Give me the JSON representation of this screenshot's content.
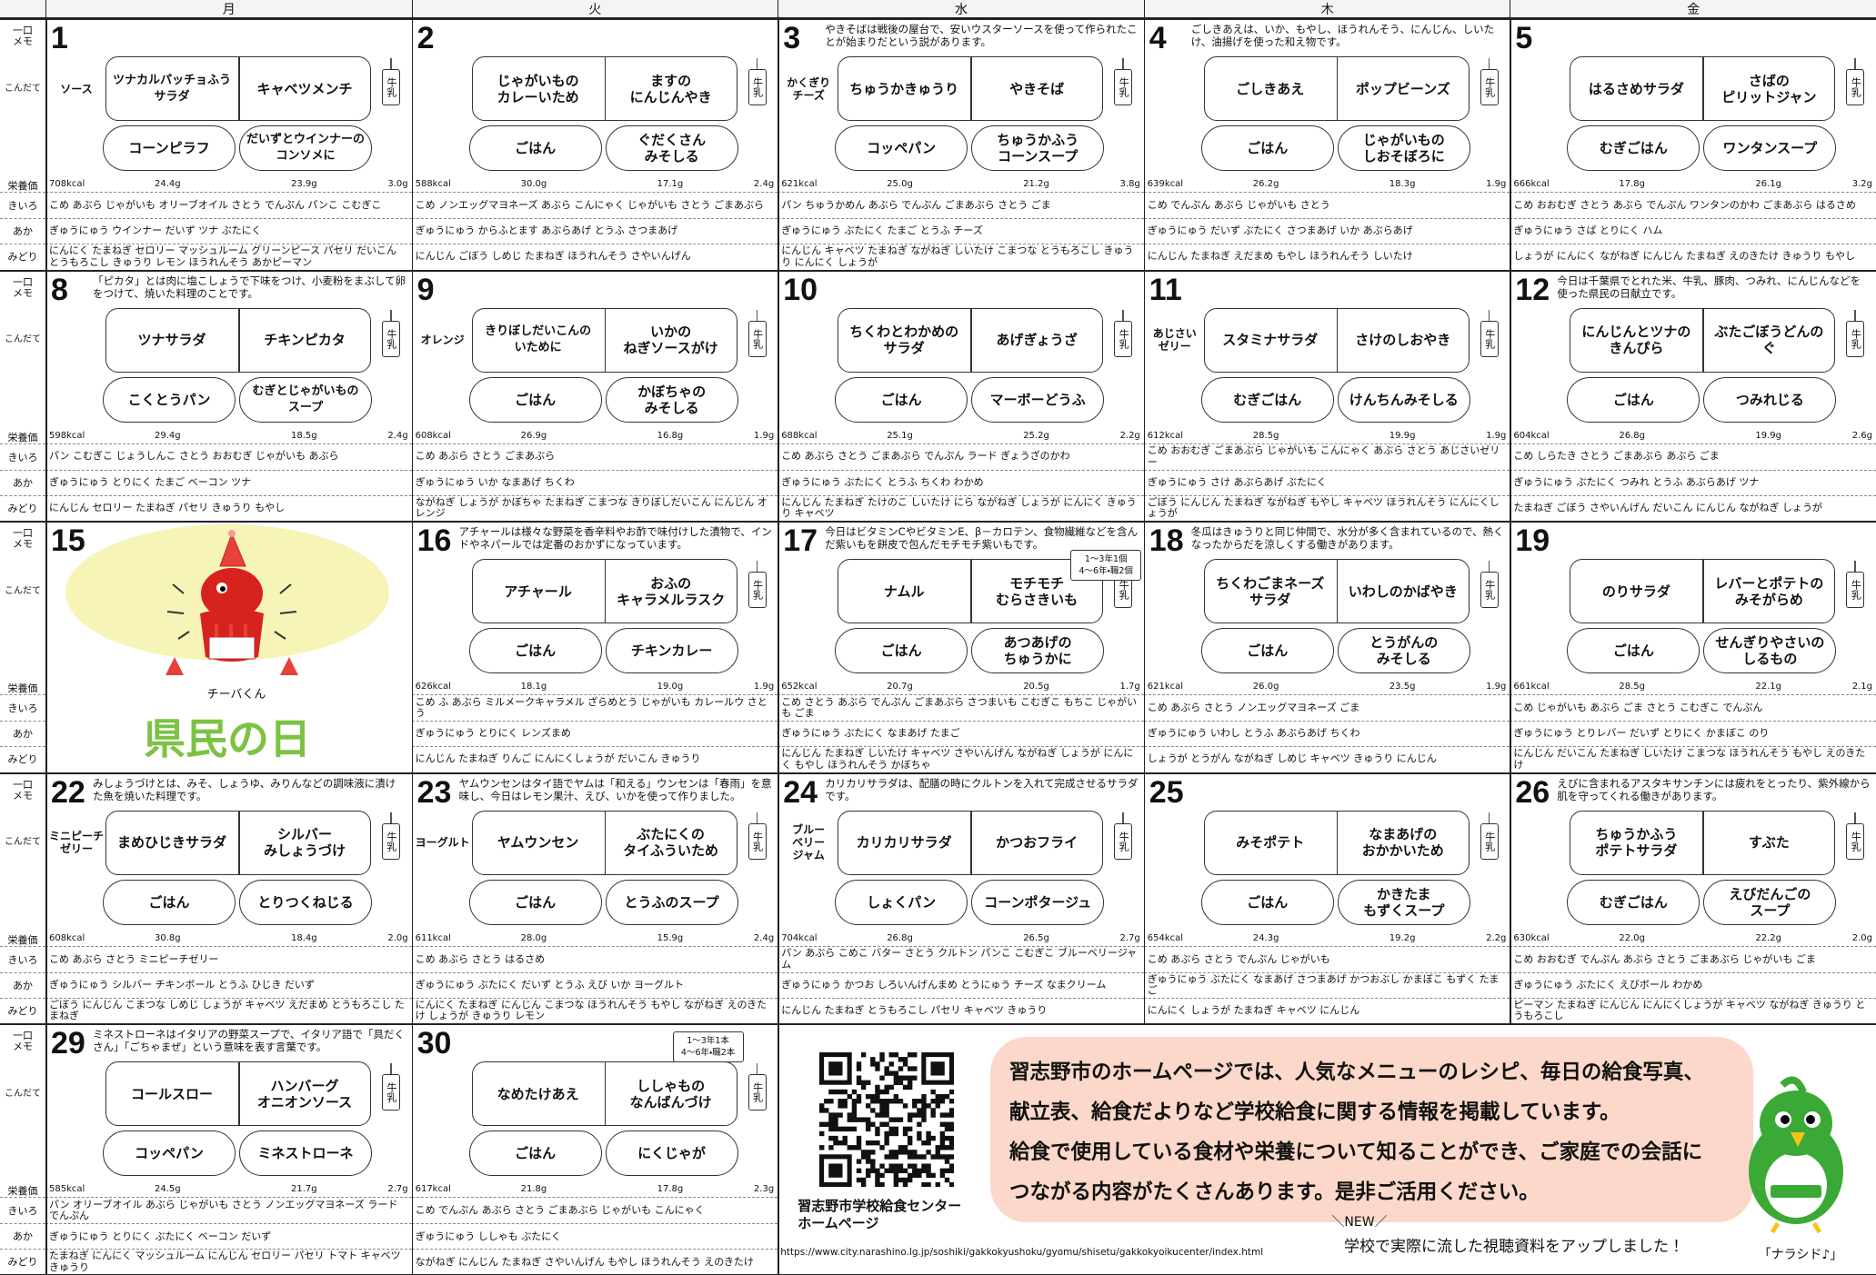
{
  "header": {
    "days": [
      "月",
      "火",
      "水",
      "木",
      "金"
    ]
  },
  "row_labels": {
    "memo": "一口\nメモ",
    "menu": "こんだて",
    "nutrition": "栄養価",
    "yellow": "きいろ",
    "red": "あか",
    "green": "みどり"
  },
  "milk": "牛乳",
  "weeks": [
    {
      "days": [
        {
          "date": "1",
          "side": "ソース",
          "main": [
            "ツナカルパッチョふう\nサラダ",
            "キャベツメンチ"
          ],
          "sub": [
            "コーンピラフ",
            "だいずとウインナーの\nコンソメに"
          ],
          "nutrition": {
            "kcal": "708kcal",
            "protein": "24.4g",
            "fat": "23.9g",
            "salt": "3.0g"
          },
          "yellow": "こめ あぶら じゃがいも オリーブオイル さとう でんぷん パンこ こむぎこ",
          "red": "ぎゅうにゅう ウインナー だいず ツナ ぶたにく",
          "green": "にんにく たまねぎ セロリー マッシュルーム グリーンピース パセリ だいこん とうもろこし きゅうり レモン ほうれんそう あかピーマン"
        },
        {
          "date": "2",
          "main": [
            "じゃがいもの\nカレーいため",
            "ますの\nにんじんやき"
          ],
          "sub": [
            "ごはん",
            "ぐだくさん\nみそしる"
          ],
          "nutrition": {
            "kcal": "588kcal",
            "protein": "30.0g",
            "fat": "17.1g",
            "salt": "2.4g"
          },
          "yellow": "こめ ノンエッグマヨネーズ あぶら こんにゃく じゃがいも さとう ごまあぶら",
          "red": "ぎゅうにゅう からふとます あぶらあげ とうふ さつまあげ",
          "green": "にんじん ごぼう しめじ たまねぎ ほうれんそう さやいんげん"
        },
        {
          "date": "3",
          "memo": "やきそばは戦後の屋台で、安いウスターソースを使って作られたことが始まりだという説があります。",
          "side": "かくぎり\nチーズ",
          "main": [
            "ちゅうかきゅうり",
            "やきそば"
          ],
          "sub": [
            "コッペパン",
            "ちゅうかふう\nコーンスープ"
          ],
          "nutrition": {
            "kcal": "621kcal",
            "protein": "25.0g",
            "fat": "21.2g",
            "salt": "3.8g"
          },
          "yellow": "パン ちゅうかめん あぶら でんぷん ごまあぶら さとう ごま",
          "red": "ぎゅうにゅう ぶたにく たまご とうふ チーズ",
          "green": "にんじん キャベツ たまねぎ ながねぎ しいたけ こまつな とうもろこし きゅうり にんにく しょうが"
        },
        {
          "date": "4",
          "memo": "ごしきあえは、いか、もやし、ほうれんそう、にんじん、しいたけ、油揚げを使った和え物です。",
          "main": [
            "ごしきあえ",
            "ポップビーンズ"
          ],
          "sub": [
            "ごはん",
            "じゃがいもの\nしおそぼろに"
          ],
          "nutrition": {
            "kcal": "639kcal",
            "protein": "26.2g",
            "fat": "18.3g",
            "salt": "1.9g"
          },
          "yellow": "こめ でんぷん あぶら じゃがいも さとう",
          "red": "ぎゅうにゅう だいず ぶたにく さつまあげ いか あぶらあげ",
          "green": "にんじん たまねぎ えだまめ もやし ほうれんそう しいたけ"
        },
        {
          "date": "5",
          "main": [
            "はるさめサラダ",
            "さばの\nピリットジャン"
          ],
          "sub": [
            "むぎごはん",
            "ワンタンスープ"
          ],
          "nutrition": {
            "kcal": "666kcal",
            "protein": "17.8g",
            "fat": "26.1g",
            "salt": "3.2g"
          },
          "yellow": "こめ おおむぎ さとう あぶら でんぷん ワンタンのかわ ごまあぶら はるさめ",
          "red": "ぎゅうにゅう さば とりにく ハム",
          "green": "しょうが にんにく ながねぎ にんじん たまねぎ えのきたけ きゅうり もやし"
        }
      ]
    },
    {
      "days": [
        {
          "date": "8",
          "memo": "「ピカタ」とは肉に塩こしょうで下味をつけ、小麦粉をまぶして卵をつけて、焼いた料理のことです。",
          "main": [
            "ツナサラダ",
            "チキンピカタ"
          ],
          "sub": [
            "こくとうパン",
            "むぎとじゃがいもの\nスープ"
          ],
          "nutrition": {
            "kcal": "598kcal",
            "protein": "29.4g",
            "fat": "18.5g",
            "salt": "2.4g"
          },
          "yellow": "パン こむぎこ じょうしんこ さとう おおむぎ じゃがいも あぶら",
          "red": "ぎゅうにゅう とりにく たまご ベーコン ツナ",
          "green": "にんじん セロリー たまねぎ パセリ きゅうり もやし"
        },
        {
          "date": "9",
          "side": "オレンジ",
          "main": [
            "きりぼしだいこんの\nいために",
            "いかの\nねぎソースがけ"
          ],
          "sub": [
            "ごはん",
            "かぼちゃの\nみそしる"
          ],
          "nutrition": {
            "kcal": "608kcal",
            "protein": "26.9g",
            "fat": "16.8g",
            "salt": "1.9g"
          },
          "yellow": "こめ あぶら さとう ごまあぶら",
          "red": "ぎゅうにゅう いか なまあげ ちくわ",
          "green": "ながねぎ しょうが かぼちゃ たまねぎ こまつな きりぼしだいこん にんじん オレンジ"
        },
        {
          "date": "10",
          "main": [
            "ちくわとわかめの\nサラダ",
            "あげぎょうざ"
          ],
          "sub": [
            "ごはん",
            "マーボーどうふ"
          ],
          "nutrition": {
            "kcal": "688kcal",
            "protein": "25.1g",
            "fat": "25.2g",
            "salt": "2.2g"
          },
          "yellow": "こめ あぶら さとう ごまあぶら でんぷん ラード ぎょうざのかわ",
          "red": "ぎゅうにゅう ぶたにく とうふ ちくわ わかめ",
          "green": "にんじん たまねぎ たけのこ しいたけ にら ながねぎ しょうが にんにく きゅうり キャベツ"
        },
        {
          "date": "11",
          "side": "あじさい\nゼリー",
          "main": [
            "スタミナサラダ",
            "さけのしおやき"
          ],
          "sub": [
            "むぎごはん",
            "けんちんみそしる"
          ],
          "nutrition": {
            "kcal": "612kcal",
            "protein": "28.5g",
            "fat": "19.9g",
            "salt": "1.9g"
          },
          "yellow": "こめ おおむぎ ごまあぶら じゃがいも こんにゃく あぶら さとう あじさいゼリー",
          "red": "ぎゅうにゅう さけ あぶらあげ ぶたにく",
          "green": "ごぼう にんじん たまねぎ ながねぎ もやし キャベツ ほうれんそう にんにくしょうが"
        },
        {
          "date": "12",
          "memo": "今日は千葉県でとれた米、牛乳、豚肉、つみれ、にんじんなどを使った県民の日献立です。",
          "main": [
            "にんじんとツナの\nきんぴら",
            "ぶたごぼうどんの\nぐ"
          ],
          "sub": [
            "ごはん",
            "つみれじる"
          ],
          "nutrition": {
            "kcal": "604kcal",
            "protein": "26.8g",
            "fat": "19.9g",
            "salt": "2.6g"
          },
          "yellow": "こめ しらたき さとう ごまあぶら あぶら ごま",
          "red": "ぎゅうにゅう ぶたにく つみれ とうふ あぶらあげ ツナ",
          "green": "たまねぎ ごぼう さやいんげん だいこん にんじん ながねぎ しょうが"
        }
      ]
    },
    {
      "days": [
        {
          "date": "15",
          "mascot": "チーバくん",
          "banner": "県民の日"
        },
        {
          "date": "16",
          "memo": "アチャールは様々な野菜を香辛料やお酢で味付けした漬物で、インドやネパールでは定番のおかずになっています。",
          "main": [
            "アチャール",
            "おふの\nキャラメルラスク"
          ],
          "sub": [
            "ごはん",
            "チキンカレー"
          ],
          "nutrition": {
            "kcal": "626kcal",
            "protein": "18.1g",
            "fat": "19.0g",
            "salt": "1.9g"
          },
          "yellow": "こめ ふ あぶら ミルメークキャラメル ざらめとう じゃがいも カレールウ さとう",
          "red": "ぎゅうにゅう とりにく レンズまめ",
          "green": "にんじん たまねぎ りんご にんにくしょうが だいこん きゅうり"
        },
        {
          "date": "17",
          "memo": "今日はビタミンCやビタミンE、β－カロテン、食物繊維などを含んだ紫いもを餅皮で包んだモチモチ紫いもです。",
          "main": [
            "ナムル",
            "モチモチ\nむらさきいも"
          ],
          "sub": [
            "ごはん",
            "あつあげの\nちゅうかに"
          ],
          "callout": "1～3年1個\n4～6年・職2個",
          "nutrition": {
            "kcal": "652kcal",
            "protein": "20.7g",
            "fat": "20.5g",
            "salt": "1.7g"
          },
          "yellow": "こめ さとう あぶら でんぷん ごまあぶら さつまいも こむぎこ もちこ じゃがいも ごま",
          "red": "ぎゅうにゅう ぶたにく なまあげ たまご",
          "green": "にんじん たまねぎ しいたけ キャベツ さやいんげん ながねぎ しょうが にんにく もやし ほうれんそう かぼちゃ"
        },
        {
          "date": "18",
          "memo": "冬瓜はきゅうりと同じ仲間で、水分が多く含まれているので、熱くなったからだを涼しくする働きがあります。",
          "main": [
            "ちくわごまネーズ\nサラダ",
            "いわしのかばやき"
          ],
          "sub": [
            "ごはん",
            "とうがんの\nみそしる"
          ],
          "nutrition": {
            "kcal": "621kcal",
            "protein": "26.0g",
            "fat": "23.5g",
            "salt": "1.9g"
          },
          "yellow": "こめ あぶら さとう ノンエッグマヨネーズ ごま",
          "red": "ぎゅうにゅう いわし とうふ あぶらあげ ちくわ",
          "green": "しょうが とうがん ながねぎ しめじ キャベツ きゅうり にんじん"
        },
        {
          "date": "19",
          "main": [
            "のりサラダ",
            "レバーとポテトの\nみそがらめ"
          ],
          "sub": [
            "ごはん",
            "せんぎりやさいの\nしるもの"
          ],
          "nutrition": {
            "kcal": "661kcal",
            "protein": "28.5g",
            "fat": "22.1g",
            "salt": "2.1g"
          },
          "yellow": "こめ じゃがいも あぶら ごま さとう こむぎこ でんぷん",
          "red": "ぎゅうにゅう とりレバー だいず とりにく かまぼこ のり",
          "green": "にんじん だいこん たまねぎ しいたけ こまつな ほうれんそう もやし えのきたけ"
        }
      ]
    },
    {
      "days": [
        {
          "date": "22",
          "memo": "みしょうづけとは、みそ、しょうゆ、みりんなどの調味液に漬けた魚を焼いた料理です。",
          "side": "ミニピーチ\nゼリー",
          "main": [
            "まめひじきサラダ",
            "シルバー\nみしょうづけ"
          ],
          "sub": [
            "ごはん",
            "とりつくねじる"
          ],
          "nutrition": {
            "kcal": "608kcal",
            "protein": "30.8g",
            "fat": "18.4g",
            "salt": "2.0g"
          },
          "yellow": "こめ あぶら さとう ミニピーチゼリー",
          "red": "ぎゅうにゅう シルバー チキンボール とうふ ひじき だいず",
          "green": "ごぼう にんじん こまつな しめじ しょうが キャベツ えだまめ とうもろこし たまねぎ"
        },
        {
          "date": "23",
          "memo": "ヤムウンセンはタイ語でヤムは「和える」ウンセンは「春雨」を意味し、今日はレモン果汁、えび、いかを使って作りました。",
          "side": "ヨーグルト",
          "main": [
            "ヤムウンセン",
            "ぶたにくの\nタイふういため"
          ],
          "sub": [
            "ごはん",
            "とうふのスープ"
          ],
          "nutrition": {
            "kcal": "611kcal",
            "protein": "28.0g",
            "fat": "15.9g",
            "salt": "2.4g"
          },
          "yellow": "こめ あぶら さとう はるさめ",
          "red": "ぎゅうにゅう ぶたにく だいず とうふ えび いか ヨーグルト",
          "green": "にんにく たまねぎ にんじん こまつな ほうれんそう もやし ながねぎ えのきたけ しょうが きゅうり レモン"
        },
        {
          "date": "24",
          "memo": "カリカリサラダは、配膳の時にクルトンを入れて完成させるサラダです。",
          "side": "ブルー\nベリー\nジャム",
          "main": [
            "カリカリサラダ",
            "かつおフライ"
          ],
          "sub": [
            "しょくパン",
            "コーンポタージュ"
          ],
          "nutrition": {
            "kcal": "704kcal",
            "protein": "26.8g",
            "fat": "26.5g",
            "salt": "2.7g"
          },
          "yellow": "パン あぶら こめこ バター さとう クルトン パンこ こむぎこ ブルーベリージャム",
          "red": "ぎゅうにゅう かつお しろいんげんまめ とうにゅう チーズ なまクリーム",
          "green": "にんじん たまねぎ とうもろこし パセリ キャベツ きゅうり"
        },
        {
          "date": "25",
          "main": [
            "みそポテト",
            "なまあげの\nおかかいため"
          ],
          "sub": [
            "ごはん",
            "かきたま\nもずくスープ"
          ],
          "nutrition": {
            "kcal": "654kcal",
            "protein": "24.3g",
            "fat": "19.2g",
            "salt": "2.2g"
          },
          "yellow": "こめ あぶら さとう でんぷん じゃがいも",
          "red": "ぎゅうにゅう ぶたにく なまあげ さつまあげ かつおぶし かまぼこ もずく たまご",
          "green": "にんにく しょうが たまねぎ キャベツ にんじん"
        },
        {
          "date": "26",
          "memo": "えびに含まれるアスタキサンチンには疲れをとったり、紫外線から肌を守ってくれる働きがあります。",
          "main": [
            "ちゅうかふう\nポテトサラダ",
            "すぶた"
          ],
          "sub": [
            "むぎごはん",
            "えびだんごの\nスープ"
          ],
          "nutrition": {
            "kcal": "630kcal",
            "protein": "22.0g",
            "fat": "22.2g",
            "salt": "2.0g"
          },
          "yellow": "こめ おおむぎ でんぷん あぶら さとう ごまあぶら じゃがいも ごま",
          "red": "ぎゅうにゅう ぶたにく えびボール わかめ",
          "green": "ピーマン たまねぎ にんじん にんにくしょうが キャベツ ながねぎ きゅうり とうもろこし"
        }
      ]
    },
    {
      "days": [
        {
          "date": "29",
          "memo": "ミネストローネはイタリアの野菜スープで、イタリア語で「具だくさん」「ごちゃまぜ」という意味を表す言葉です。",
          "main": [
            "コールスロー",
            "ハンバーグ\nオニオンソース"
          ],
          "sub": [
            "コッペパン",
            "ミネストローネ"
          ],
          "nutrition": {
            "kcal": "585kcal",
            "protein": "24.5g",
            "fat": "21.7g",
            "salt": "2.7g"
          },
          "yellow": "パン オリーブオイル あぶら じゃがいも さとう ノンエッグマヨネーズ ラード でんぷん",
          "red": "ぎゅうにゅう とりにく ぶたにく ベーコン だいず",
          "green": "たまねぎ にんにく マッシュルーム にんじん セロリー パセリ トマト キャベツ きゅうり"
        },
        {
          "date": "30",
          "main": [
            "なめたけあえ",
            "ししゃもの\nなんばんづけ"
          ],
          "sub": [
            "ごはん",
            "にくじゃが"
          ],
          "callout": "1～3年1本\n4～6年・職2本",
          "nutrition": {
            "kcal": "617kcal",
            "protein": "21.8g",
            "fat": "17.8g",
            "salt": "2.3g"
          },
          "yellow": "こめ でんぷん あぶら さとう ごまあぶら じゃがいも こんにゃく",
          "red": "ぎゅうにゅう ししゃも ぶたにく",
          "green": "ながねぎ にんじん たまねぎ さやいんげん もやし ほうれんそう えのきたけ"
        }
      ]
    }
  ],
  "info": {
    "center_label": "習志野市学校給食センター\nホームページ",
    "url": "https://www.city.narashino.lg.jp/soshiki/gakkokyushoku/gyomu/shisetu/gakkokyoikucenter/index.html",
    "message": [
      "習志野市のホームページでは、人気なメニューのレシピ、毎日の給食写真、",
      "献立表、給食だよりなど学校給食に関する情報を掲載しています。",
      "給食で使用している食材や栄養について知ることができ、ご家庭での会話に",
      "つながる内容がたくさんあります。是非ご活用ください。"
    ],
    "new_label": "＼NEW／",
    "new_text": "学校で実際に流した視聴資料をアップしました！",
    "mascot": "「ナラシド♪」"
  }
}
